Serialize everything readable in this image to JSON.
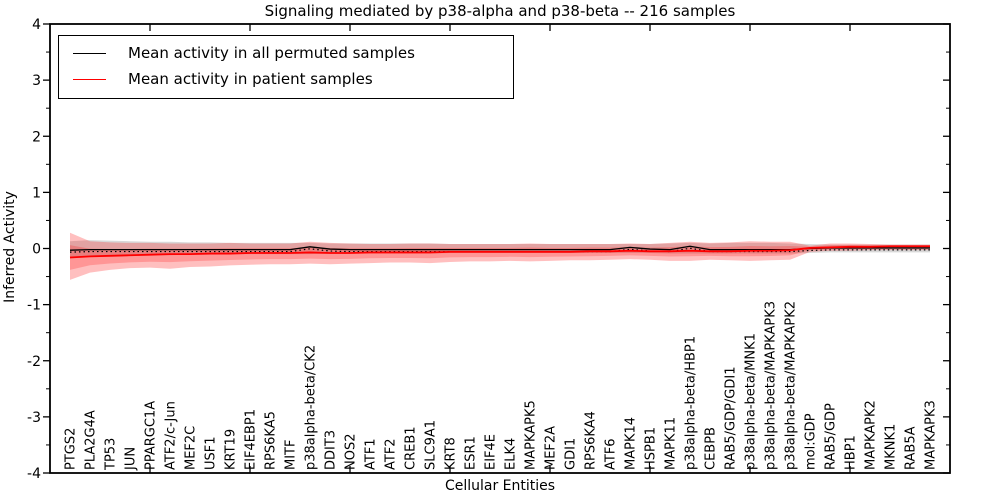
{
  "title": "Signaling mediated by p38-alpha and p38-beta -- 216 samples",
  "axes": {
    "x_label": "Cellular Entities",
    "y_label": "Inferred Activity",
    "y_tick_labels": [
      "4",
      "3",
      "2",
      "1",
      "0",
      "-1",
      "-2",
      "-3",
      "-4"
    ],
    "y_tick_values": [
      4,
      3,
      2,
      1,
      0,
      -1,
      -2,
      -3,
      -4
    ],
    "x_major_tick_values": [
      5,
      10,
      15,
      20,
      25,
      30,
      35,
      40
    ]
  },
  "legend": {
    "items": [
      {
        "label": "Mean activity in all permuted samples",
        "color": "#000000"
      },
      {
        "label": "Mean activity in patient samples",
        "color": "#ff0000"
      }
    ]
  },
  "colors": {
    "permuted_line": "#000000",
    "patient_line": "#ff0000",
    "patient_band_fill": "#ff0000",
    "permuted_band_fill": "#909090",
    "frame": "#000000"
  },
  "chart_data": {
    "type": "line",
    "title": "Signaling mediated by p38-alpha and p38-beta -- 216 samples",
    "xlabel": "Cellular Entities",
    "ylabel": "Inferred Activity",
    "ylim": [
      -4,
      4
    ],
    "xlim": [
      0,
      45
    ],
    "grid": false,
    "legend_position": "upper left",
    "categories": [
      "PTGS2",
      "PLA2G4A",
      "TP53",
      "JUN",
      "PPARGC1A",
      "ATF2/c-Jun",
      "MEF2C",
      "USF1",
      "KRT19",
      "EIF4EBP1",
      "RPS6KA5",
      "MITF",
      "p38alpha-beta/CK2",
      "DDIT3",
      "NOS2",
      "ATF1",
      "ATF2",
      "CREB1",
      "SLC9A1",
      "KRT8",
      "ESR1",
      "EIF4E",
      "ELK4",
      "MAPKAPK5",
      "MEF2A",
      "GDI1",
      "RPS6KA4",
      "ATF6",
      "MAPK14",
      "HSPB1",
      "MAPK11",
      "p38alpha-beta/HBP1",
      "CEBPB",
      "RAB5/GDP/GDI1",
      "p38alpha-beta/MNK1",
      "p38alpha-beta/MAPKAPK3",
      "p38alpha-beta/MAPKAPK2",
      "mol:GDP",
      "RAB5/GDP",
      "HBP1",
      "MAPKAPK2",
      "MKNK1",
      "RAB5A",
      "MAPKAPK3"
    ],
    "series": [
      {
        "name": "Mean activity in all permuted samples",
        "color": "#000000",
        "values": [
          -0.03,
          -0.02,
          -0.02,
          -0.02,
          -0.02,
          -0.02,
          -0.02,
          -0.02,
          -0.02,
          -0.02,
          -0.02,
          -0.02,
          0.03,
          -0.01,
          -0.02,
          -0.02,
          -0.02,
          -0.02,
          -0.02,
          -0.02,
          -0.02,
          -0.02,
          -0.02,
          -0.02,
          -0.02,
          -0.02,
          -0.02,
          -0.02,
          0.02,
          -0.01,
          -0.02,
          0.04,
          -0.02,
          -0.02,
          -0.02,
          -0.02,
          -0.02,
          0.0,
          0.01,
          0.01,
          0.01,
          0.01,
          0.01,
          0.01
        ]
      },
      {
        "name": "Mean activity in patient samples",
        "color": "#ff0000",
        "values": [
          -0.16,
          -0.14,
          -0.13,
          -0.12,
          -0.11,
          -0.1,
          -0.1,
          -0.09,
          -0.09,
          -0.08,
          -0.08,
          -0.08,
          -0.07,
          -0.08,
          -0.08,
          -0.07,
          -0.07,
          -0.07,
          -0.07,
          -0.06,
          -0.06,
          -0.06,
          -0.06,
          -0.06,
          -0.06,
          -0.06,
          -0.05,
          -0.05,
          -0.04,
          -0.05,
          -0.05,
          -0.04,
          -0.05,
          -0.05,
          -0.04,
          -0.04,
          -0.03,
          0.01,
          0.02,
          0.03,
          0.03,
          0.04,
          0.04,
          0.04
        ]
      }
    ],
    "bands": [
      {
        "name": "permuted-samples-band",
        "color": "#909090",
        "opacity": 0.35,
        "top": [
          0.13,
          0.15,
          0.14,
          0.13,
          0.12,
          0.12,
          0.11,
          0.11,
          0.1,
          0.1,
          0.1,
          0.1,
          0.1,
          0.09,
          0.09,
          0.09,
          0.09,
          0.09,
          0.09,
          0.08,
          0.08,
          0.08,
          0.08,
          0.08,
          0.08,
          0.08,
          0.08,
          0.08,
          0.08,
          0.08,
          0.09,
          0.1,
          0.09,
          0.1,
          0.1,
          0.1,
          0.09,
          0.08,
          0.07,
          0.07,
          0.07,
          0.07,
          0.07,
          0.07
        ],
        "bottom": [
          -0.15,
          -0.15,
          -0.14,
          -0.13,
          -0.12,
          -0.12,
          -0.11,
          -0.11,
          -0.1,
          -0.1,
          -0.1,
          -0.1,
          -0.1,
          -0.09,
          -0.09,
          -0.09,
          -0.09,
          -0.09,
          -0.09,
          -0.08,
          -0.08,
          -0.08,
          -0.08,
          -0.08,
          -0.08,
          -0.08,
          -0.08,
          -0.08,
          -0.08,
          -0.08,
          -0.09,
          -0.09,
          -0.09,
          -0.09,
          -0.09,
          -0.09,
          -0.09,
          -0.08,
          -0.07,
          -0.07,
          -0.07,
          -0.07,
          -0.07,
          -0.07
        ]
      },
      {
        "name": "patient-samples-band",
        "color": "#ff0000",
        "opacity": 0.25,
        "top": [
          0.28,
          0.13,
          0.11,
          0.1,
          0.1,
          0.09,
          0.09,
          0.09,
          0.1,
          0.09,
          0.09,
          0.09,
          0.12,
          0.1,
          0.09,
          0.08,
          0.08,
          0.09,
          0.09,
          0.08,
          0.08,
          0.08,
          0.08,
          0.09,
          0.08,
          0.08,
          0.08,
          0.08,
          0.09,
          0.08,
          0.1,
          0.12,
          0.1,
          0.11,
          0.13,
          0.12,
          0.12,
          0.05,
          0.09,
          0.09,
          0.08,
          0.07,
          0.07,
          0.07
        ],
        "bottom": [
          -0.56,
          -0.43,
          -0.38,
          -0.35,
          -0.34,
          -0.36,
          -0.33,
          -0.32,
          -0.3,
          -0.29,
          -0.28,
          -0.28,
          -0.27,
          -0.28,
          -0.27,
          -0.26,
          -0.25,
          -0.25,
          -0.26,
          -0.24,
          -0.23,
          -0.23,
          -0.22,
          -0.23,
          -0.22,
          -0.21,
          -0.21,
          -0.2,
          -0.19,
          -0.2,
          -0.22,
          -0.22,
          -0.2,
          -0.21,
          -0.22,
          -0.21,
          -0.2,
          -0.06,
          -0.04,
          -0.04,
          -0.03,
          -0.03,
          -0.03,
          -0.03
        ]
      }
    ],
    "dotted_guide_offset": -0.035
  }
}
